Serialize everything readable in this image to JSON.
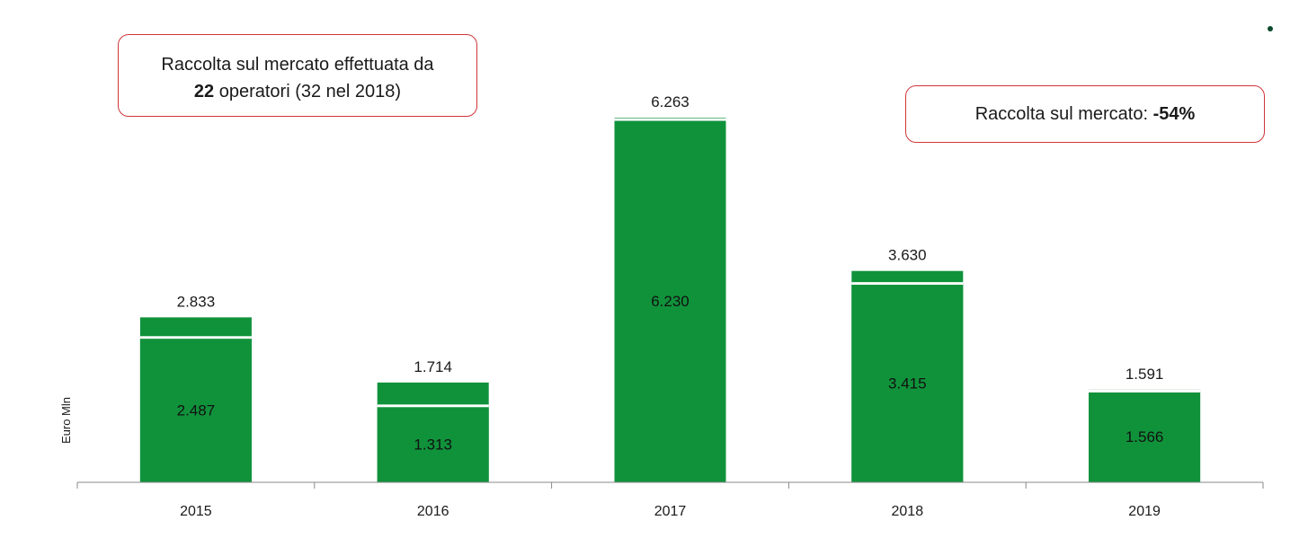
{
  "chart_data": {
    "type": "bar",
    "stacked": true,
    "categories": [
      "2015",
      "2016",
      "2017",
      "2018",
      "2019"
    ],
    "series": [
      {
        "name": "inner",
        "values": [
          2487,
          1313,
          6230,
          3415,
          1566
        ],
        "labels": [
          "2.487",
          "1.313",
          "6.230",
          "3.415",
          "1.566"
        ]
      },
      {
        "name": "total",
        "values": [
          2833,
          1714,
          6263,
          3630,
          1591
        ],
        "labels": [
          "2.833",
          "1.714",
          "6.263",
          "3.630",
          "1.591"
        ]
      }
    ],
    "ylabel": "Euro Mln",
    "xlabel": "",
    "ylim": [
      0,
      6263
    ],
    "grid": false,
    "bar_color": "#10923b",
    "annotations": {
      "box1_line1": "Raccolta sul mercato effettuata da",
      "box1_bold": "22",
      "box1_rest": " operatori (32 nel 2018)",
      "box2_text": "Raccolta sul mercato: ",
      "box2_bold": "-54%"
    }
  }
}
